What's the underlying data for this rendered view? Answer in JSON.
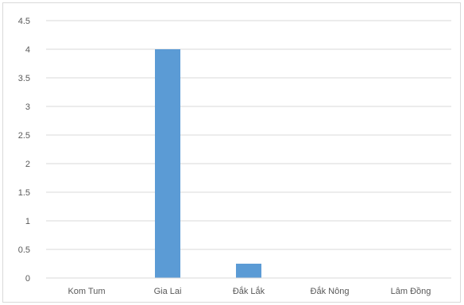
{
  "chart_data": {
    "type": "bar",
    "categories": [
      "Kom Tum",
      "Gia Lai",
      "Đắk Lắk",
      "Đắk Nông",
      "Lâm Đồng"
    ],
    "values": [
      0,
      4,
      0.25,
      0,
      0
    ],
    "ylim": [
      0,
      4.5
    ],
    "yticks": [
      "0",
      "0.5",
      "1",
      "1.5",
      "2",
      "2.5",
      "3",
      "3.5",
      "4",
      "4.5"
    ],
    "grid": true,
    "bar_color": "#5b9bd5",
    "grid_color": "#d9d9d9",
    "legend": "none"
  }
}
